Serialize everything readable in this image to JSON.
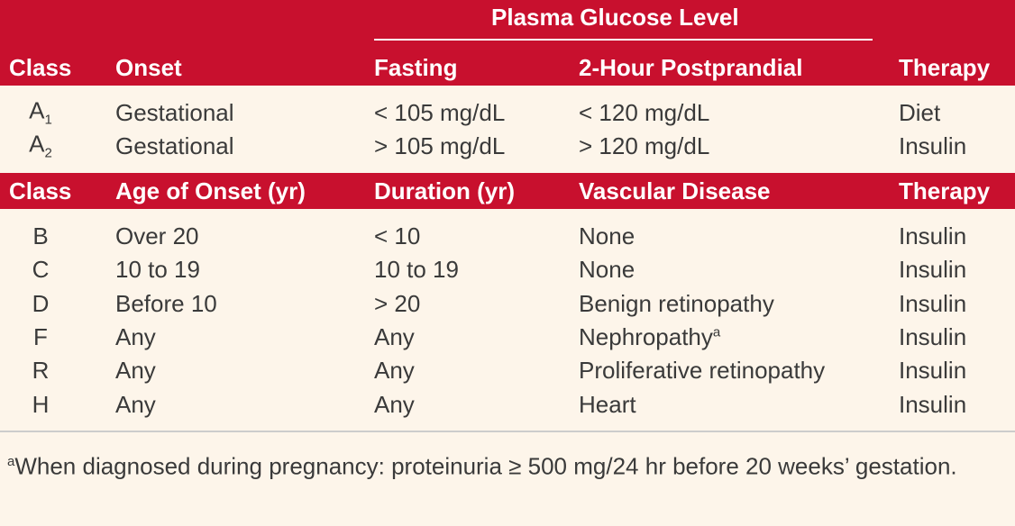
{
  "table1": {
    "group_header": "Plasma Glucose Level",
    "columns": [
      "Class",
      "Onset",
      "Fasting",
      "2-Hour Postprandial",
      "Therapy"
    ],
    "rows": [
      {
        "class": "A",
        "class_sub": "1",
        "onset": "Gestational",
        "fasting": "< 105 mg/dL",
        "postprandial": "< 120 mg/dL",
        "therapy": "Diet"
      },
      {
        "class": "A",
        "class_sub": "2",
        "onset": "Gestational",
        "fasting": "> 105 mg/dL",
        "postprandial": "> 120 mg/dL",
        "therapy": "Insulin"
      }
    ]
  },
  "table2": {
    "columns": [
      "Class",
      "Age of Onset (yr)",
      "Duration (yr)",
      "Vascular Disease",
      "Therapy"
    ],
    "rows": [
      {
        "class": "B",
        "age": "Over 20",
        "duration": "< 10",
        "vascular": "None",
        "therapy": "Insulin"
      },
      {
        "class": "C",
        "age": "10 to 19",
        "duration": "10 to 19",
        "vascular": "None",
        "therapy": "Insulin"
      },
      {
        "class": "D",
        "age": "Before 10",
        "duration": "> 20",
        "vascular": "Benign retinopathy",
        "therapy": "Insulin"
      },
      {
        "class": "F",
        "age": "Any",
        "duration": "Any",
        "vascular": "Nephropathy",
        "vascular_note": "a",
        "therapy": "Insulin"
      },
      {
        "class": "R",
        "age": "Any",
        "duration": "Any",
        "vascular": "Proliferative retinopathy",
        "therapy": "Insulin"
      },
      {
        "class": "H",
        "age": "Any",
        "duration": "Any",
        "vascular": "Heart",
        "therapy": "Insulin"
      }
    ]
  },
  "footnote": {
    "marker": "a",
    "text": "When diagnosed during pregnancy: proteinuria ≥ 500 mg/24 hr before 20 weeks’ gestation."
  }
}
